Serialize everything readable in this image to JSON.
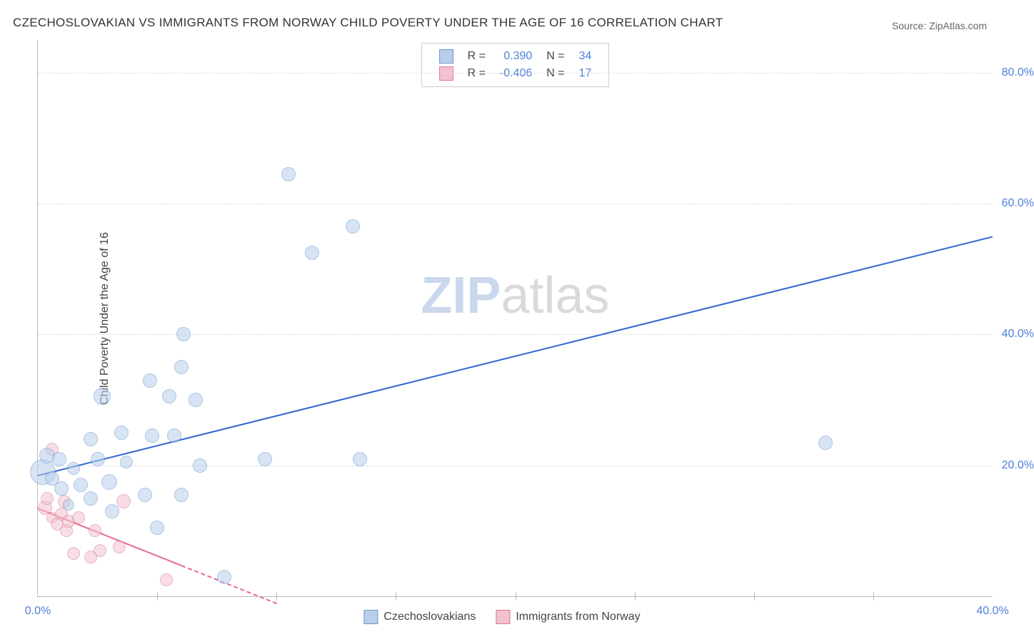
{
  "title": "CZECHOSLOVAKIAN VS IMMIGRANTS FROM NORWAY CHILD POVERTY UNDER THE AGE OF 16 CORRELATION CHART",
  "source_prefix": "Source: ",
  "source_name": "ZipAtlas.com",
  "ylabel": "Child Poverty Under the Age of 16",
  "watermark_part1": "ZIP",
  "watermark_part2": "atlas",
  "chart": {
    "type": "scatter",
    "background_color": "#ffffff",
    "grid_color": "#dcdcdc",
    "axis_color": "#bbbbbb",
    "tick_label_color": "#4f7fd6",
    "tick_fontsize": 16,
    "xlim": [
      0,
      40
    ],
    "ylim": [
      0,
      85
    ],
    "x_ticks_labeled": [
      {
        "v": 0,
        "label": "0.0%"
      },
      {
        "v": 40,
        "label": "40.0%"
      }
    ],
    "x_ticks_major": [
      5,
      10,
      15,
      20,
      25,
      30,
      35
    ],
    "y_ticks": [
      {
        "v": 20,
        "label": "20.0%"
      },
      {
        "v": 40,
        "label": "40.0%"
      },
      {
        "v": 60,
        "label": "60.0%"
      },
      {
        "v": 80,
        "label": "80.0%"
      }
    ],
    "series": [
      {
        "name": "Czechoslovakians",
        "fill_color": "#b7cfeb",
        "stroke_color": "#6f96cf",
        "fill_opacity": 0.55,
        "marker_radius": 10,
        "trend": {
          "color": "#2e67d1",
          "width": 2,
          "x1": 0,
          "y1": 18.5,
          "x2": 40,
          "y2": 55.0,
          "dashed": false
        },
        "stats": {
          "R": "0.390",
          "N": "34"
        },
        "points": [
          {
            "x": 0.2,
            "y": 19.0,
            "r": 18
          },
          {
            "x": 0.4,
            "y": 21.5,
            "r": 11
          },
          {
            "x": 0.6,
            "y": 18.0,
            "r": 10
          },
          {
            "x": 0.9,
            "y": 21.0,
            "r": 10
          },
          {
            "x": 1.0,
            "y": 16.5,
            "r": 10
          },
          {
            "x": 1.3,
            "y": 14.0,
            "r": 8
          },
          {
            "x": 1.5,
            "y": 19.5,
            "r": 9
          },
          {
            "x": 1.8,
            "y": 17.0,
            "r": 10
          },
          {
            "x": 2.2,
            "y": 15.0,
            "r": 10
          },
          {
            "x": 2.2,
            "y": 24.0,
            "r": 10
          },
          {
            "x": 2.5,
            "y": 21.0,
            "r": 10
          },
          {
            "x": 2.7,
            "y": 30.5,
            "r": 12
          },
          {
            "x": 3.0,
            "y": 17.5,
            "r": 11
          },
          {
            "x": 3.1,
            "y": 13.0,
            "r": 10
          },
          {
            "x": 3.5,
            "y": 25.0,
            "r": 10
          },
          {
            "x": 3.7,
            "y": 20.5,
            "r": 9
          },
          {
            "x": 4.5,
            "y": 15.5,
            "r": 10
          },
          {
            "x": 4.7,
            "y": 33.0,
            "r": 10
          },
          {
            "x": 4.8,
            "y": 24.5,
            "r": 10
          },
          {
            "x": 5.0,
            "y": 10.5,
            "r": 10
          },
          {
            "x": 5.5,
            "y": 30.5,
            "r": 10
          },
          {
            "x": 5.7,
            "y": 24.5,
            "r": 10
          },
          {
            "x": 6.0,
            "y": 35.0,
            "r": 10
          },
          {
            "x": 6.0,
            "y": 15.5,
            "r": 10
          },
          {
            "x": 6.1,
            "y": 40.0,
            "r": 10
          },
          {
            "x": 6.6,
            "y": 30.0,
            "r": 10
          },
          {
            "x": 6.8,
            "y": 20.0,
            "r": 10
          },
          {
            "x": 7.8,
            "y": 3.0,
            "r": 10
          },
          {
            "x": 9.5,
            "y": 21.0,
            "r": 10
          },
          {
            "x": 10.5,
            "y": 64.5,
            "r": 10
          },
          {
            "x": 11.5,
            "y": 52.5,
            "r": 10
          },
          {
            "x": 13.2,
            "y": 56.5,
            "r": 10
          },
          {
            "x": 13.5,
            "y": 21.0,
            "r": 10
          },
          {
            "x": 33.0,
            "y": 23.5,
            "r": 10
          }
        ]
      },
      {
        "name": "Immigrants from Norway",
        "fill_color": "#f3c2cf",
        "stroke_color": "#d97a96",
        "fill_opacity": 0.55,
        "marker_radius": 9,
        "trend": {
          "color": "#e76a8b",
          "width": 2,
          "x1": 0,
          "y1": 13.5,
          "x2": 10,
          "y2": -1.0,
          "dashed_after_x": 6.0
        },
        "stats": {
          "R": "-0.406",
          "N": "17"
        },
        "points": [
          {
            "x": 0.3,
            "y": 13.5,
            "r": 10
          },
          {
            "x": 0.4,
            "y": 15.0,
            "r": 9
          },
          {
            "x": 0.6,
            "y": 12.0,
            "r": 8
          },
          {
            "x": 0.6,
            "y": 22.5,
            "r": 9
          },
          {
            "x": 0.8,
            "y": 11.0,
            "r": 9
          },
          {
            "x": 1.0,
            "y": 12.5,
            "r": 9
          },
          {
            "x": 1.1,
            "y": 14.5,
            "r": 9
          },
          {
            "x": 1.2,
            "y": 10.0,
            "r": 9
          },
          {
            "x": 1.3,
            "y": 11.5,
            "r": 9
          },
          {
            "x": 1.5,
            "y": 6.5,
            "r": 9
          },
          {
            "x": 1.7,
            "y": 12.0,
            "r": 9
          },
          {
            "x": 2.2,
            "y": 6.0,
            "r": 9
          },
          {
            "x": 2.4,
            "y": 10.0,
            "r": 9
          },
          {
            "x": 2.6,
            "y": 7.0,
            "r": 9
          },
          {
            "x": 3.4,
            "y": 7.5,
            "r": 9
          },
          {
            "x": 3.6,
            "y": 14.5,
            "r": 10
          },
          {
            "x": 5.4,
            "y": 2.5,
            "r": 9
          }
        ]
      }
    ]
  },
  "stats_legend": {
    "r_label": "R =",
    "n_label": "N ="
  },
  "bottom_legend": {
    "items": [
      {
        "label": "Czechoslovakians",
        "fill": "#b7cfeb",
        "stroke": "#6f96cf"
      },
      {
        "label": "Immigrants from Norway",
        "fill": "#f3c2cf",
        "stroke": "#d97a96"
      }
    ]
  }
}
